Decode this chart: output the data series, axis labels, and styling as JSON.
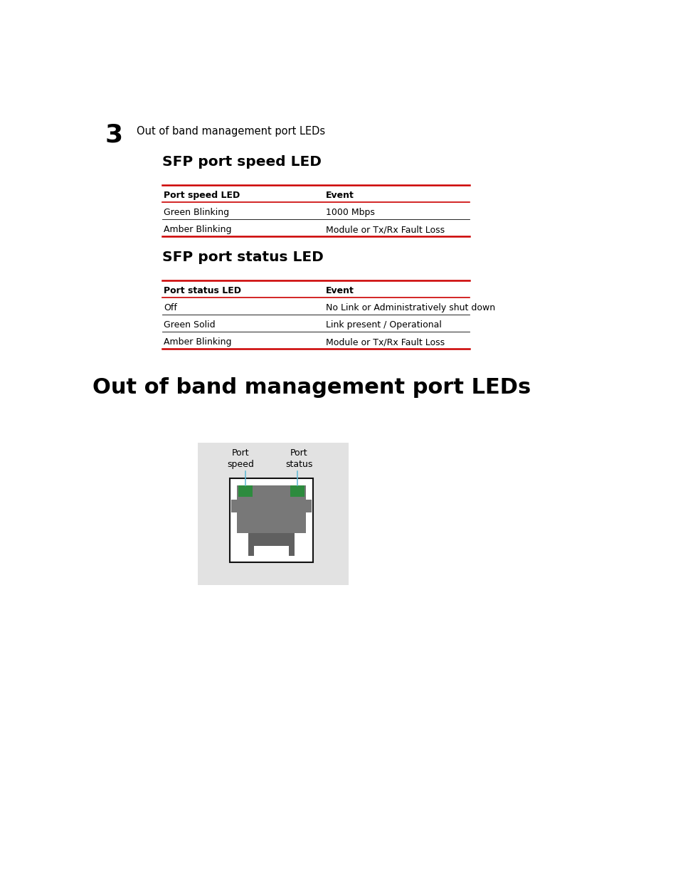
{
  "page_bg": "#ffffff",
  "step_number": "3",
  "step_text": "Out of band management port LEDs",
  "table1_title": "SFP port speed LED",
  "table1_header": [
    "Port speed LED",
    "Event"
  ],
  "table1_rows": [
    [
      "Green Blinking",
      "1000 Mbps"
    ],
    [
      "Amber Blinking",
      "Module or Tx/Rx Fault Loss"
    ]
  ],
  "table2_title": "SFP port status LED",
  "table2_header": [
    "Port status LED",
    "Event"
  ],
  "table2_rows": [
    [
      "Off",
      "No Link or Administratively shut down"
    ],
    [
      "Green Solid",
      "Link present / Operational"
    ],
    [
      "Amber Blinking",
      "Module or Tx/Rx Fault Loss"
    ]
  ],
  "section_title": "Out of band management port LEDs",
  "red_line_color": "#cc0000",
  "black_line_color": "#000000",
  "green_color": "#2d8b3e",
  "cyan_color": "#5bb8d4",
  "gray_bg": "#e2e2e2",
  "port_gray": "#787878",
  "port_dark": "#606060",
  "port_darker": "#505050"
}
